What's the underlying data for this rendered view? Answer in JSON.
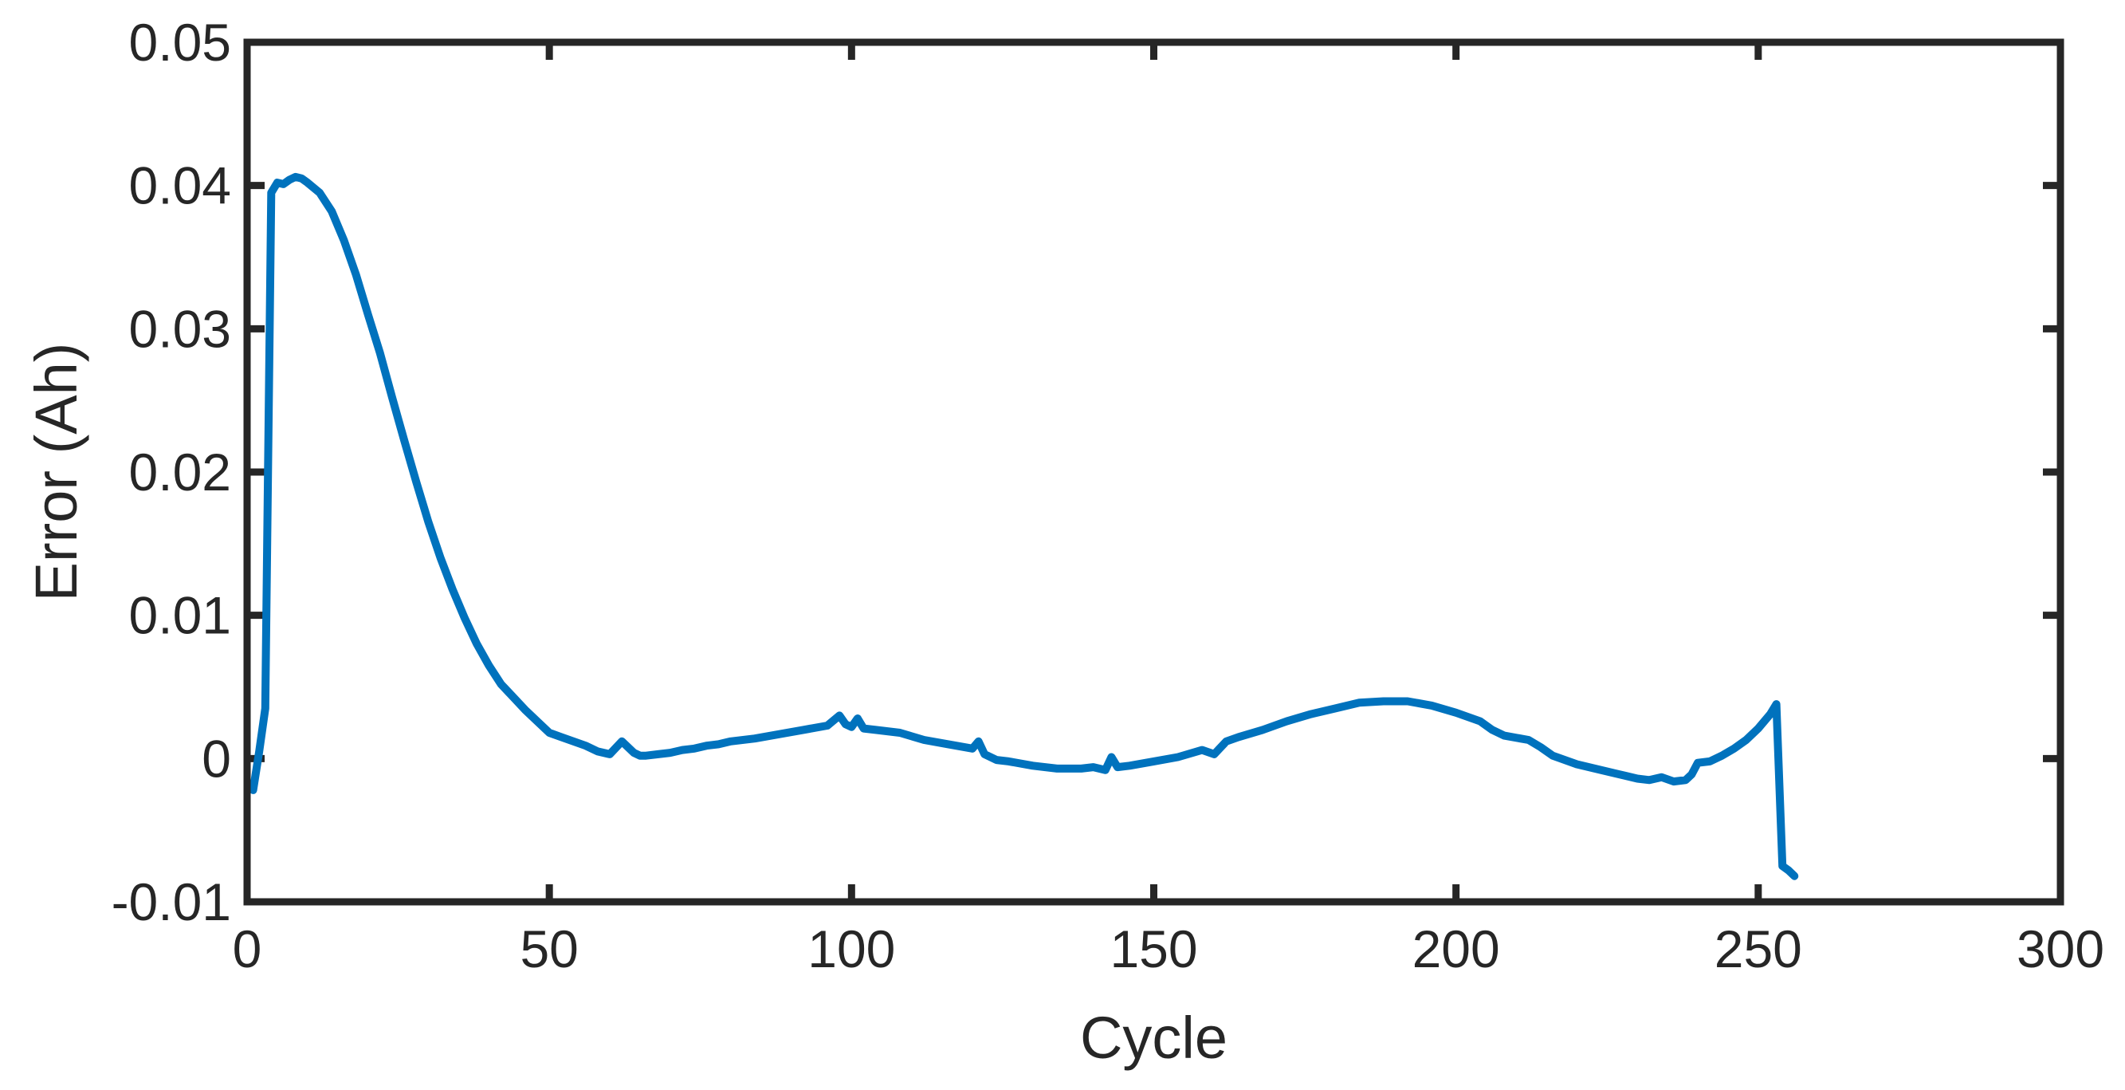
{
  "chart_data": {
    "type": "line",
    "title": "",
    "xlabel": "Cycle",
    "ylabel": "Error (Ah)",
    "xlim": [
      0,
      300
    ],
    "ylim": [
      -0.01,
      0.05
    ],
    "xticks": [
      0,
      50,
      100,
      150,
      200,
      250,
      300
    ],
    "xtick_labels": [
      "0",
      "50",
      "100",
      "150",
      "200",
      "250",
      "300"
    ],
    "yticks": [
      -0.01,
      0,
      0.01,
      0.02,
      0.03,
      0.04,
      0.05
    ],
    "ytick_labels": [
      "-0.01",
      "0",
      "0.01",
      "0.02",
      "0.03",
      "0.04",
      "0.05"
    ],
    "grid": false,
    "legend": "none",
    "line_color": "#0072BD",
    "axis_color": "#262626",
    "series": [
      {
        "x": [
          1,
          2,
          3,
          4,
          5,
          6,
          7,
          8,
          9,
          10,
          12,
          14,
          16,
          18,
          20,
          22,
          24,
          26,
          28,
          30,
          32,
          34,
          36,
          38,
          40,
          42,
          44,
          46,
          48,
          50,
          52,
          54,
          56,
          58,
          60,
          62,
          64,
          65,
          66,
          68,
          70,
          72,
          74,
          76,
          78,
          80,
          84,
          88,
          92,
          96,
          98,
          99,
          100,
          101,
          102,
          104,
          108,
          112,
          116,
          120,
          121,
          122,
          124,
          126,
          130,
          134,
          138,
          140,
          142,
          143,
          144,
          146,
          150,
          154,
          158,
          160,
          162,
          164,
          168,
          172,
          176,
          180,
          184,
          188,
          190,
          192,
          196,
          200,
          204,
          206,
          208,
          212,
          214,
          216,
          220,
          224,
          228,
          230,
          232,
          234,
          236,
          238,
          239,
          240,
          242,
          244,
          246,
          248,
          250,
          252,
          253,
          254,
          255,
          256
        ],
        "y": [
          -0.0022,
          0.0005,
          0.0035,
          0.0395,
          0.0402,
          0.0401,
          0.0404,
          0.0406,
          0.0405,
          0.0402,
          0.0395,
          0.0382,
          0.0362,
          0.0338,
          0.031,
          0.0283,
          0.0252,
          0.0222,
          0.0193,
          0.0165,
          0.014,
          0.0118,
          0.0098,
          0.008,
          0.0065,
          0.0052,
          0.0043,
          0.0034,
          0.0026,
          0.0018,
          0.0015,
          0.0012,
          0.0009,
          0.0005,
          0.0003,
          0.0012,
          0.0004,
          0.0002,
          0.0002,
          0.0003,
          0.0004,
          0.0006,
          0.0007,
          0.0009,
          0.001,
          0.0012,
          0.0014,
          0.0017,
          0.002,
          0.0023,
          0.003,
          0.0024,
          0.0022,
          0.0028,
          0.0021,
          0.002,
          0.0018,
          0.0013,
          0.001,
          0.0007,
          0.0012,
          0.0003,
          -0.0001,
          -0.0002,
          -0.0005,
          -0.0007,
          -0.0007,
          -0.0006,
          -0.0008,
          0.0001,
          -0.0006,
          -0.0005,
          -0.0002,
          0.0001,
          0.0006,
          0.0003,
          0.0012,
          0.0015,
          0.002,
          0.0026,
          0.0031,
          0.0035,
          0.0039,
          0.004,
          0.004,
          0.004,
          0.0037,
          0.0032,
          0.0026,
          0.002,
          0.0016,
          0.0013,
          0.0008,
          0.0002,
          -0.0004,
          -0.0008,
          -0.0012,
          -0.0014,
          -0.0015,
          -0.0013,
          -0.0016,
          -0.0015,
          -0.0011,
          -0.0003,
          -0.0002,
          0.0002,
          0.0007,
          0.0013,
          0.0021,
          0.0031,
          0.0038,
          -0.0075,
          -0.0078,
          -0.0082
        ]
      }
    ]
  }
}
